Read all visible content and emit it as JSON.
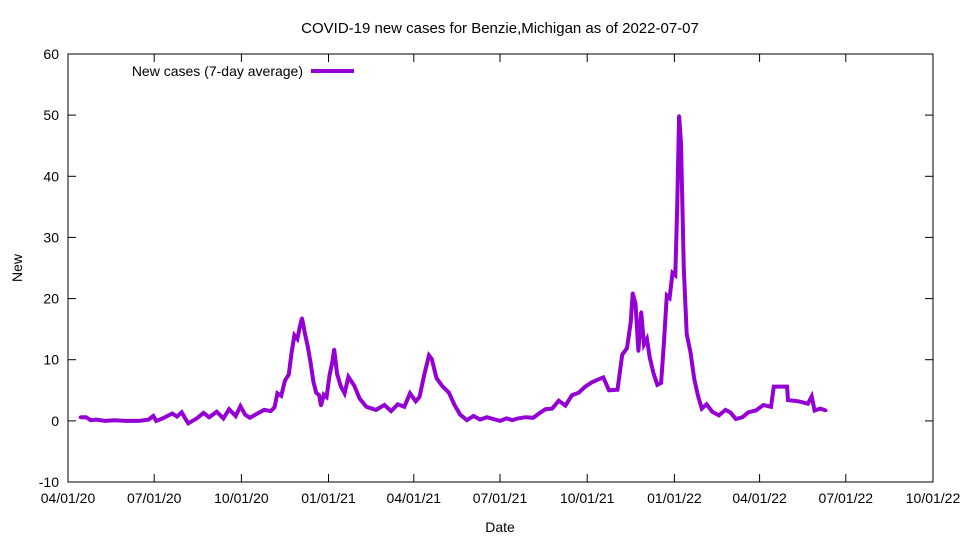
{
  "chart_data": {
    "type": "line",
    "title": "COVID-19 new cases for Benzie,Michigan as of 2022-07-07",
    "xlabel": "Date",
    "ylabel": "New",
    "ylim": [
      -10,
      60
    ],
    "yticks": [
      -10,
      0,
      10,
      20,
      30,
      40,
      50,
      60
    ],
    "xlim": [
      "2020-04-01",
      "2022-10-01"
    ],
    "xticks": [
      {
        "date": "2020-04-01",
        "label": "04/01/20"
      },
      {
        "date": "2020-07-01",
        "label": "07/01/20"
      },
      {
        "date": "2020-10-01",
        "label": "10/01/20"
      },
      {
        "date": "2021-01-01",
        "label": "01/01/21"
      },
      {
        "date": "2021-04-01",
        "label": "04/01/21"
      },
      {
        "date": "2021-07-01",
        "label": "07/01/21"
      },
      {
        "date": "2021-10-01",
        "label": "10/01/21"
      },
      {
        "date": "2022-01-01",
        "label": "01/01/22"
      },
      {
        "date": "2022-04-01",
        "label": "04/01/22"
      },
      {
        "date": "2022-07-01",
        "label": "07/01/22"
      },
      {
        "date": "2022-10-01",
        "label": "10/01/22"
      }
    ],
    "legend_position": "top-left",
    "grid": false,
    "series": [
      {
        "name": "New cases (7-day average)",
        "color": "#9400d3",
        "points": [
          [
            "2020-04-14",
            0.6
          ],
          [
            "2020-04-20",
            0.6
          ],
          [
            "2020-04-25",
            0.1
          ],
          [
            "2020-05-01",
            0.2
          ],
          [
            "2020-05-10",
            0.0
          ],
          [
            "2020-05-20",
            0.1
          ],
          [
            "2020-06-01",
            0.0
          ],
          [
            "2020-06-15",
            0.0
          ],
          [
            "2020-06-25",
            0.2
          ],
          [
            "2020-06-30",
            0.8
          ],
          [
            "2020-07-03",
            0.0
          ],
          [
            "2020-07-10",
            0.4
          ],
          [
            "2020-07-20",
            1.2
          ],
          [
            "2020-07-25",
            0.7
          ],
          [
            "2020-07-30",
            1.4
          ],
          [
            "2020-08-03",
            0.3
          ],
          [
            "2020-08-06",
            -0.4
          ],
          [
            "2020-08-15",
            0.4
          ],
          [
            "2020-08-22",
            1.3
          ],
          [
            "2020-08-28",
            0.6
          ],
          [
            "2020-09-05",
            1.5
          ],
          [
            "2020-09-12",
            0.4
          ],
          [
            "2020-09-18",
            1.9
          ],
          [
            "2020-09-25",
            0.8
          ],
          [
            "2020-09-30",
            2.4
          ],
          [
            "2020-10-05",
            1.0
          ],
          [
            "2020-10-10",
            0.5
          ],
          [
            "2020-10-18",
            1.2
          ],
          [
            "2020-10-25",
            1.8
          ],
          [
            "2020-11-01",
            1.6
          ],
          [
            "2020-11-05",
            2.2
          ],
          [
            "2020-11-08",
            4.5
          ],
          [
            "2020-11-12",
            4.1
          ],
          [
            "2020-11-16",
            6.6
          ],
          [
            "2020-11-20",
            7.6
          ],
          [
            "2020-11-23",
            11.2
          ],
          [
            "2020-11-26",
            14.0
          ],
          [
            "2020-11-29",
            13.4
          ],
          [
            "2020-12-02",
            15.6
          ],
          [
            "2020-12-04",
            16.8
          ],
          [
            "2020-12-07",
            14.3
          ],
          [
            "2020-12-10",
            12.2
          ],
          [
            "2020-12-13",
            9.6
          ],
          [
            "2020-12-16",
            6.4
          ],
          [
            "2020-12-19",
            4.6
          ],
          [
            "2020-12-22",
            4.2
          ],
          [
            "2020-12-24",
            2.5
          ],
          [
            "2020-12-27",
            4.3
          ],
          [
            "2020-12-30",
            3.9
          ],
          [
            "2021-01-02",
            7.4
          ],
          [
            "2021-01-05",
            9.6
          ],
          [
            "2021-01-07",
            11.7
          ],
          [
            "2021-01-10",
            7.7
          ],
          [
            "2021-01-14",
            5.6
          ],
          [
            "2021-01-18",
            4.5
          ],
          [
            "2021-01-22",
            7.2
          ],
          [
            "2021-01-28",
            5.8
          ],
          [
            "2021-02-03",
            3.6
          ],
          [
            "2021-02-10",
            2.3
          ],
          [
            "2021-02-20",
            1.8
          ],
          [
            "2021-03-01",
            2.6
          ],
          [
            "2021-03-08",
            1.6
          ],
          [
            "2021-03-15",
            2.7
          ],
          [
            "2021-03-22",
            2.3
          ],
          [
            "2021-03-28",
            4.5
          ],
          [
            "2021-04-03",
            3.2
          ],
          [
            "2021-04-07",
            3.9
          ],
          [
            "2021-04-12",
            7.5
          ],
          [
            "2021-04-17",
            10.7
          ],
          [
            "2021-04-20",
            10.1
          ],
          [
            "2021-04-25",
            7.0
          ],
          [
            "2021-05-01",
            5.7
          ],
          [
            "2021-05-08",
            4.6
          ],
          [
            "2021-05-14",
            2.6
          ],
          [
            "2021-05-20",
            1.0
          ],
          [
            "2021-05-27",
            0.1
          ],
          [
            "2021-06-03",
            0.8
          ],
          [
            "2021-06-10",
            0.2
          ],
          [
            "2021-06-17",
            0.6
          ],
          [
            "2021-06-24",
            0.3
          ],
          [
            "2021-07-01",
            0.0
          ],
          [
            "2021-07-08",
            0.4
          ],
          [
            "2021-07-14",
            0.1
          ],
          [
            "2021-07-20",
            0.4
          ],
          [
            "2021-07-28",
            0.6
          ],
          [
            "2021-08-05",
            0.5
          ],
          [
            "2021-08-12",
            1.3
          ],
          [
            "2021-08-18",
            1.9
          ],
          [
            "2021-08-25",
            2.0
          ],
          [
            "2021-09-01",
            3.3
          ],
          [
            "2021-09-08",
            2.5
          ],
          [
            "2021-09-15",
            4.2
          ],
          [
            "2021-09-22",
            4.6
          ],
          [
            "2021-09-29",
            5.6
          ],
          [
            "2021-10-06",
            6.3
          ],
          [
            "2021-10-13",
            6.8
          ],
          [
            "2021-10-18",
            7.1
          ],
          [
            "2021-10-24",
            5.0
          ],
          [
            "2021-11-02",
            5.1
          ],
          [
            "2021-11-07",
            10.8
          ],
          [
            "2021-11-12",
            11.9
          ],
          [
            "2021-11-16",
            16.2
          ],
          [
            "2021-11-18",
            20.9
          ],
          [
            "2021-11-21",
            19.2
          ],
          [
            "2021-11-24",
            11.4
          ],
          [
            "2021-11-27",
            17.8
          ],
          [
            "2021-11-30",
            12.5
          ],
          [
            "2021-12-03",
            13.4
          ],
          [
            "2021-12-06",
            10.4
          ],
          [
            "2021-12-10",
            7.8
          ],
          [
            "2021-12-14",
            5.9
          ],
          [
            "2021-12-18",
            6.2
          ],
          [
            "2021-12-21",
            12.7
          ],
          [
            "2021-12-24",
            20.5
          ],
          [
            "2021-12-27",
            20.1
          ],
          [
            "2021-12-30",
            24.2
          ],
          [
            "2022-01-02",
            23.8
          ],
          [
            "2022-01-04",
            35.0
          ],
          [
            "2022-01-06",
            49.9
          ],
          [
            "2022-01-08",
            45.4
          ],
          [
            "2022-01-11",
            24.9
          ],
          [
            "2022-01-14",
            14.2
          ],
          [
            "2022-01-18",
            11.2
          ],
          [
            "2022-01-22",
            6.9
          ],
          [
            "2022-01-26",
            4.1
          ],
          [
            "2022-01-30",
            2.0
          ],
          [
            "2022-02-04",
            2.7
          ],
          [
            "2022-02-10",
            1.5
          ],
          [
            "2022-02-17",
            0.9
          ],
          [
            "2022-02-24",
            1.8
          ],
          [
            "2022-03-01",
            1.4
          ],
          [
            "2022-03-07",
            0.3
          ],
          [
            "2022-03-14",
            0.6
          ],
          [
            "2022-03-20",
            1.4
          ],
          [
            "2022-03-28",
            1.7
          ],
          [
            "2022-04-05",
            2.6
          ],
          [
            "2022-04-13",
            2.3
          ],
          [
            "2022-04-16",
            5.6
          ],
          [
            "2022-04-30",
            5.6
          ],
          [
            "2022-05-01",
            3.4
          ],
          [
            "2022-05-12",
            3.2
          ],
          [
            "2022-05-22",
            2.8
          ],
          [
            "2022-05-26",
            4.0
          ],
          [
            "2022-05-29",
            1.7
          ],
          [
            "2022-06-04",
            2.0
          ],
          [
            "2022-06-10",
            1.7
          ]
        ]
      }
    ]
  }
}
